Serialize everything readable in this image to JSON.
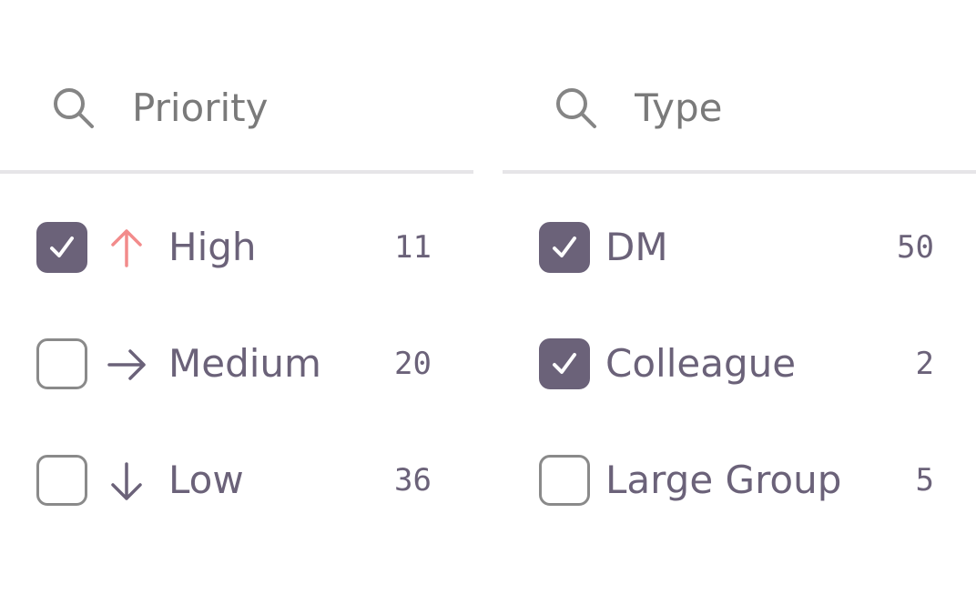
{
  "colors": {
    "accent": "#6b6279",
    "high": "#f28b8b",
    "border": "#8a8a8a",
    "placeholder": "#7a7a7a"
  },
  "priority": {
    "placeholder": "Priority",
    "search_icon": "search-icon",
    "items": [
      {
        "label": "High",
        "count": "11",
        "checked": true,
        "icon": "arrow-up-icon"
      },
      {
        "label": "Medium",
        "count": "20",
        "checked": false,
        "icon": "arrow-right-icon"
      },
      {
        "label": "Low",
        "count": "36",
        "checked": false,
        "icon": "arrow-down-icon"
      }
    ]
  },
  "type": {
    "placeholder": "Type",
    "search_icon": "search-icon",
    "items": [
      {
        "label": "DM",
        "count": "50",
        "checked": true
      },
      {
        "label": "Colleague",
        "count": "2",
        "checked": true
      },
      {
        "label": "Large Group",
        "count": "5",
        "checked": false
      }
    ]
  }
}
